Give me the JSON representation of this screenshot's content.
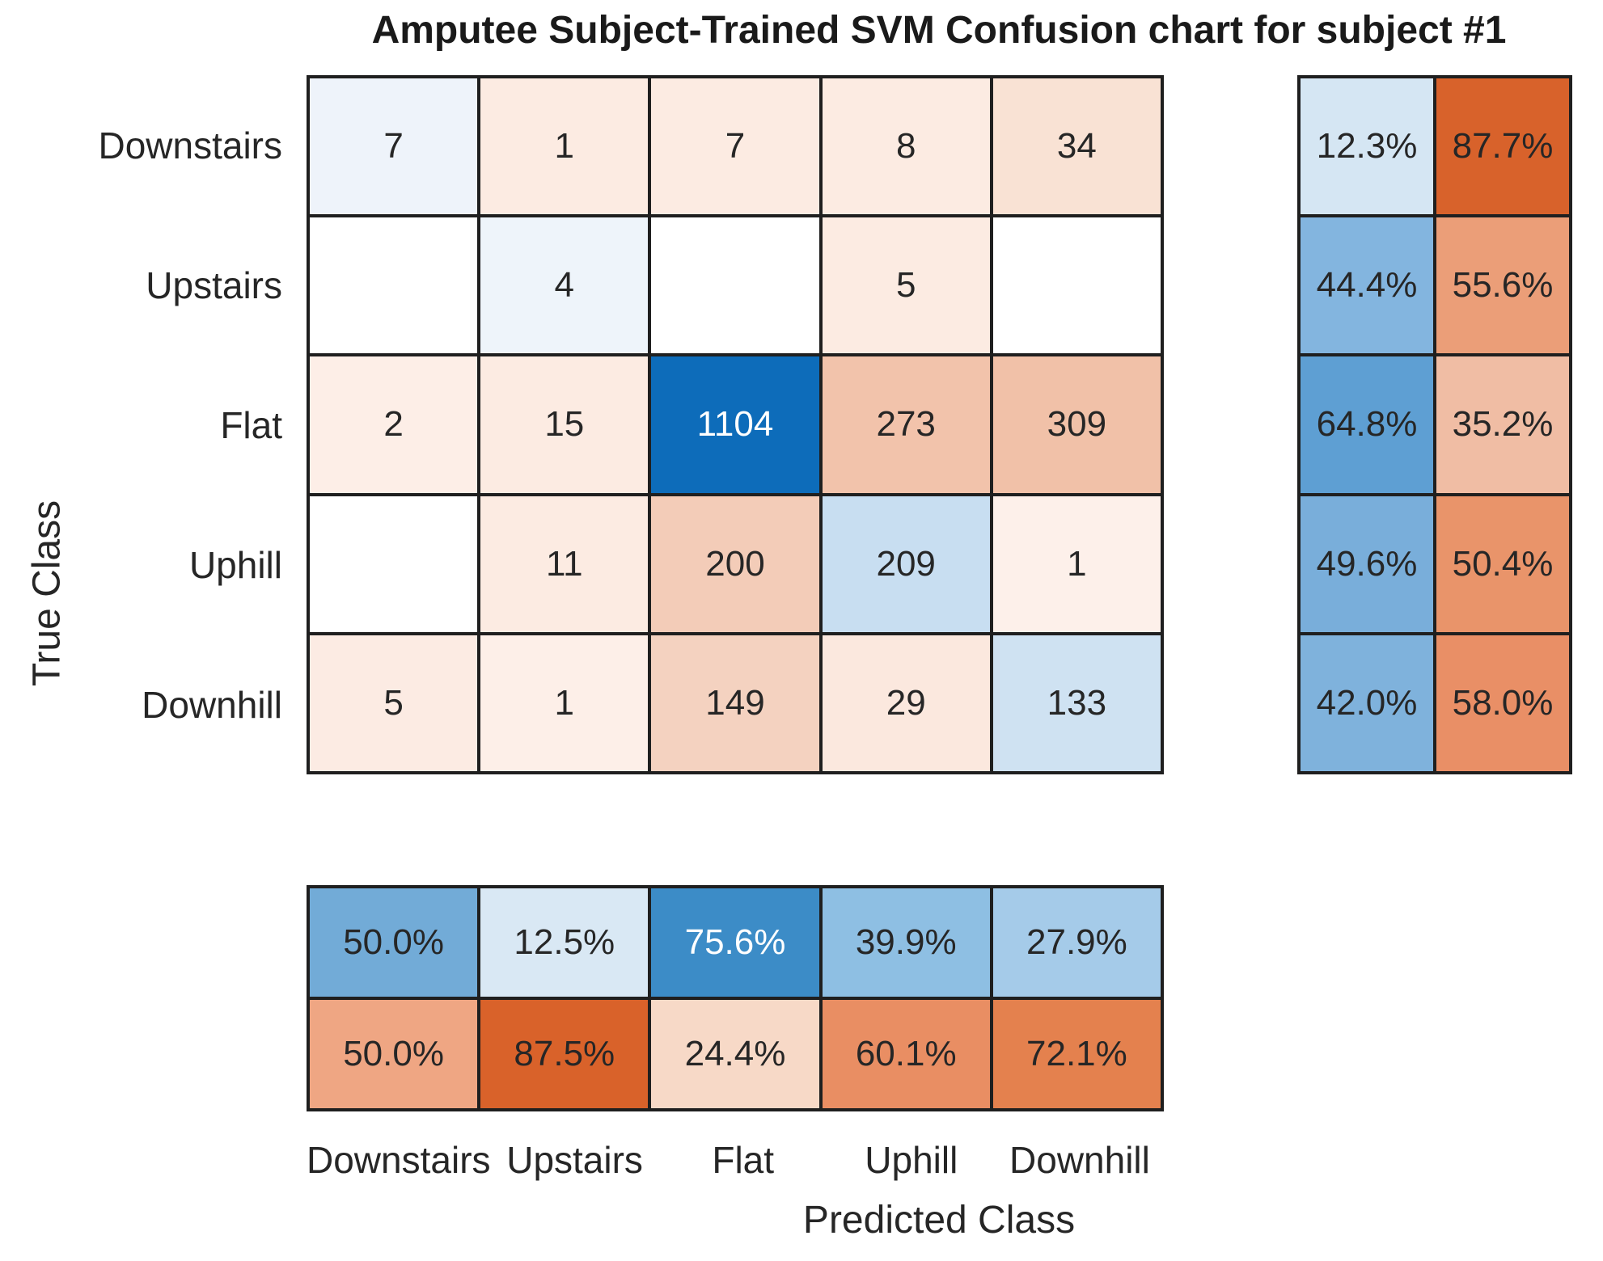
{
  "title": "Amputee Subject-Trained SVM Confusion chart for subject #1",
  "axes": {
    "x_label": "Predicted Class",
    "y_label": "True Class"
  },
  "chart_data": {
    "type": "heatmap",
    "title": "Amputee Subject-Trained SVM Confusion chart for subject #1",
    "xlabel": "Predicted Class",
    "ylabel": "True Class",
    "classes": [
      "Downstairs",
      "Upstairs",
      "Flat",
      "Uphill",
      "Downhill"
    ],
    "matrix": [
      [
        7,
        1,
        7,
        8,
        34
      ],
      [
        null,
        4,
        null,
        5,
        null
      ],
      [
        2,
        15,
        1104,
        273,
        309
      ],
      [
        null,
        11,
        200,
        209,
        1
      ],
      [
        5,
        1,
        149,
        29,
        133
      ]
    ],
    "row_summary": [
      [
        "12.3%",
        "87.7%"
      ],
      [
        "44.4%",
        "55.6%"
      ],
      [
        "64.8%",
        "35.2%"
      ],
      [
        "49.6%",
        "50.4%"
      ],
      [
        "42.0%",
        "58.0%"
      ]
    ],
    "col_summary": [
      [
        "50.0%",
        "12.5%",
        "75.6%",
        "39.9%",
        "27.9%"
      ],
      [
        "50.0%",
        "87.5%",
        "24.4%",
        "60.1%",
        "72.1%"
      ]
    ],
    "colors": {
      "background": "#ffffff",
      "grid_line": "#1f1f1f",
      "text": "#262626",
      "matrix_bg": [
        [
          "#eef3fa",
          "#fcebe2",
          "#fcebe2",
          "#fcebe2",
          "#f9e2d4"
        ],
        [
          "#ffffff",
          "#eef4fa",
          "#ffffff",
          "#fcebe2",
          "#ffffff"
        ],
        [
          "#fdeee7",
          "#fcebe2",
          "#0d6cba",
          "#f2c3ab",
          "#f1c1a8"
        ],
        [
          "#ffffff",
          "#fcebe2",
          "#f3ccb8",
          "#c8def1",
          "#fdf0ea"
        ],
        [
          "#fcebe3",
          "#fdefe8",
          "#f4d2c0",
          "#fbe8de",
          "#cfe2f2"
        ]
      ],
      "matrix_text": [
        [
          "#262626",
          "#262626",
          "#262626",
          "#262626",
          "#262626"
        ],
        [
          "#262626",
          "#262626",
          "#262626",
          "#262626",
          "#262626"
        ],
        [
          "#262626",
          "#262626",
          "#ffffff",
          "#262626",
          "#262626"
        ],
        [
          "#262626",
          "#262626",
          "#262626",
          "#262626",
          "#262626"
        ],
        [
          "#262626",
          "#262626",
          "#262626",
          "#262626",
          "#262626"
        ]
      ],
      "row_summary_bg": [
        [
          "#d5e6f3",
          "#d8622b"
        ],
        [
          "#83b5df",
          "#eb9e78"
        ],
        [
          "#5e9fd3",
          "#f0bda4"
        ],
        [
          "#79aeda",
          "#e9946a"
        ],
        [
          "#7fb2dc",
          "#e98f66"
        ]
      ],
      "row_summary_text": [
        [
          "#262626",
          "#262626"
        ],
        [
          "#262626",
          "#262626"
        ],
        [
          "#262626",
          "#262626"
        ],
        [
          "#262626",
          "#262626"
        ],
        [
          "#262626",
          "#262626"
        ]
      ],
      "col_summary_bg": [
        [
          "#72abd7",
          "#d9e8f4",
          "#3c8cc7",
          "#8ebfe3",
          "#a5cbe9"
        ],
        [
          "#efa683",
          "#d9622a",
          "#f7d9c7",
          "#e98e63",
          "#e4814e"
        ]
      ],
      "col_summary_text": [
        [
          "#262626",
          "#262626",
          "#ffffff",
          "#262626",
          "#262626"
        ],
        [
          "#262626",
          "#262626",
          "#262626",
          "#262626",
          "#262626"
        ]
      ]
    }
  }
}
